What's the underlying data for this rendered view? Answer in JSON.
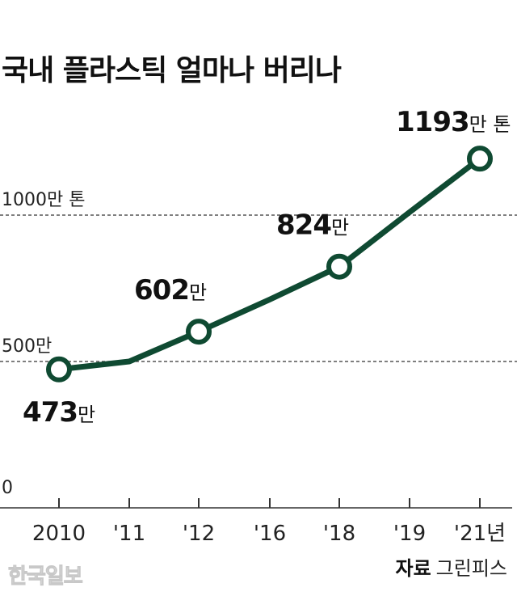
{
  "title": "국내 플라스틱 얼마나 버리나",
  "source_label": "자료",
  "source_name": "그린피스",
  "watermark": "한국일보",
  "colors": {
    "line": "#0f4a32",
    "grid": "#333333",
    "axis": "#333333"
  },
  "chart_data": {
    "type": "line",
    "title": "국내 플라스틱 얼마나 버리나",
    "categories": [
      "2010",
      "'11",
      "'12",
      "'16",
      "'18",
      "'19",
      "'21년"
    ],
    "values": [
      473,
      500,
      602,
      712,
      824,
      1010,
      1193
    ],
    "markers": [
      true,
      false,
      true,
      false,
      true,
      false,
      true
    ],
    "data_labels": [
      {
        "index": 0,
        "number": "473",
        "unit": "만"
      },
      {
        "index": 2,
        "number": "602",
        "unit": "만"
      },
      {
        "index": 4,
        "number": "824",
        "unit": "만"
      },
      {
        "index": 6,
        "number": "1193",
        "unit": "만 톤"
      }
    ],
    "y_ticks": [
      {
        "value": 0,
        "label": "0"
      },
      {
        "value": 500,
        "label": "500만"
      },
      {
        "value": 1000,
        "label": "1000만 톤"
      }
    ],
    "ylim": [
      0,
      1300
    ],
    "grid": "dashed at 500 and 1000",
    "legend": "none"
  }
}
